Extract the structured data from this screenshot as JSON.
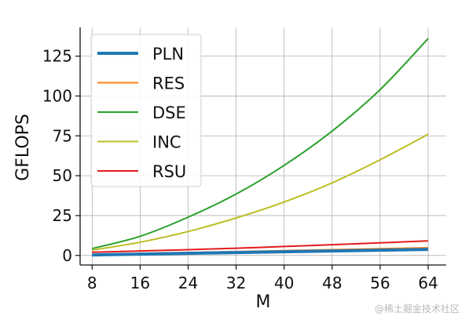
{
  "chart_data": {
    "type": "line",
    "xlabel": "M",
    "ylabel": "GFLOPS",
    "xlim": [
      6,
      67
    ],
    "ylim": [
      -6,
      143
    ],
    "xticks": [
      8,
      16,
      24,
      32,
      40,
      48,
      56,
      64
    ],
    "yticks": [
      0,
      25,
      50,
      75,
      100,
      125
    ],
    "grid": true,
    "legend_position": "top-left",
    "x": [
      8,
      16,
      24,
      32,
      40,
      48,
      56,
      64
    ],
    "series": [
      {
        "name": "PLN",
        "color": "#1f77b4",
        "values": [
          0.3,
          0.8,
          1.3,
          1.8,
          2.3,
          2.8,
          3.3,
          3.8
        ]
      },
      {
        "name": "RES",
        "color": "#ff7f0e",
        "values": [
          0.6,
          1.2,
          1.8,
          2.4,
          3.0,
          3.6,
          4.2,
          4.8
        ]
      },
      {
        "name": "DSE",
        "color": "#2ca02c",
        "values": [
          4.3,
          12,
          24,
          38.5,
          56.5,
          78,
          104,
          136
        ]
      },
      {
        "name": "INC",
        "color": "#bcbd22",
        "values": [
          3.3,
          8.3,
          15,
          23.5,
          33.5,
          45.5,
          60,
          76
        ]
      },
      {
        "name": "RSU",
        "color": "#e31a1c",
        "values": [
          2.0,
          2.8,
          3.6,
          4.5,
          5.6,
          6.7,
          7.9,
          9.1
        ]
      }
    ]
  },
  "watermark": "@稀土掘金技术社区"
}
